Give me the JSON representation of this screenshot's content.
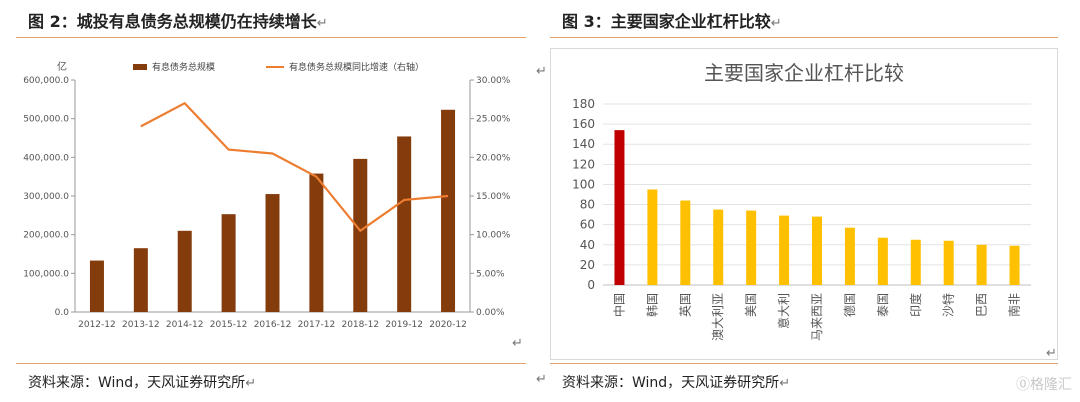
{
  "return_mark": "↵",
  "watermark": "⓪格隆汇",
  "left_panel": {
    "figure_title": "图 2：城投有息债务总规模仍在持续增长",
    "source": "资料来源：Wind，天风证券研究所"
  },
  "right_panel": {
    "figure_title": "图 3：主要国家企业杠杆比较",
    "source": "资料来源：Wind，天风证券研究所"
  },
  "colors": {
    "bar": "#843c0c",
    "line": "#ed7d31",
    "china_bar": "#c00000",
    "other_bar": "#ffc000",
    "rule": "#e8a06a"
  },
  "chart_data": [
    {
      "type": "bar",
      "title": "",
      "unit_label": "亿",
      "categories": [
        "2012-12",
        "2013-12",
        "2014-12",
        "2015-12",
        "2016-12",
        "2017-12",
        "2018-12",
        "2019-12",
        "2020-12"
      ],
      "series": [
        {
          "name": "有息债务总规模",
          "type": "bar",
          "axis": "left",
          "values": [
            133000,
            165000,
            210000,
            253000,
            305000,
            358000,
            396000,
            454000,
            523000
          ]
        },
        {
          "name": "有息债务总规模同比增速（右轴）",
          "type": "line",
          "axis": "right",
          "values": [
            null,
            0.24,
            0.27,
            0.21,
            0.205,
            0.175,
            0.105,
            0.145,
            0.15
          ]
        }
      ],
      "yticks_left": [
        "0.0",
        "100,000.0",
        "200,000.0",
        "300,000.0",
        "400,000.0",
        "500,000.0",
        "600,000.0"
      ],
      "ylim_left": [
        0,
        600000
      ],
      "yticks_right": [
        "0.00%",
        "5.00%",
        "10.00%",
        "15.00%",
        "20.00%",
        "25.00%",
        "30.00%"
      ],
      "ylim_right": [
        0,
        0.3
      ],
      "grid": false,
      "legend": "top"
    },
    {
      "type": "bar",
      "title": "主要国家企业杠杆比较",
      "categories": [
        "中国",
        "韩国",
        "英国",
        "澳大利亚",
        "美国",
        "意大利",
        "马来西亚",
        "德国",
        "泰国",
        "印度",
        "沙特",
        "巴西",
        "南非"
      ],
      "values": [
        154,
        95,
        84,
        75,
        74,
        69,
        68,
        57,
        47,
        45,
        44,
        40,
        39
      ],
      "highlight_index": 0,
      "yticks": [
        "0",
        "20",
        "40",
        "60",
        "80",
        "100",
        "120",
        "140",
        "160",
        "180"
      ],
      "ylim": [
        0,
        180
      ],
      "grid": true,
      "legend": "none"
    }
  ]
}
